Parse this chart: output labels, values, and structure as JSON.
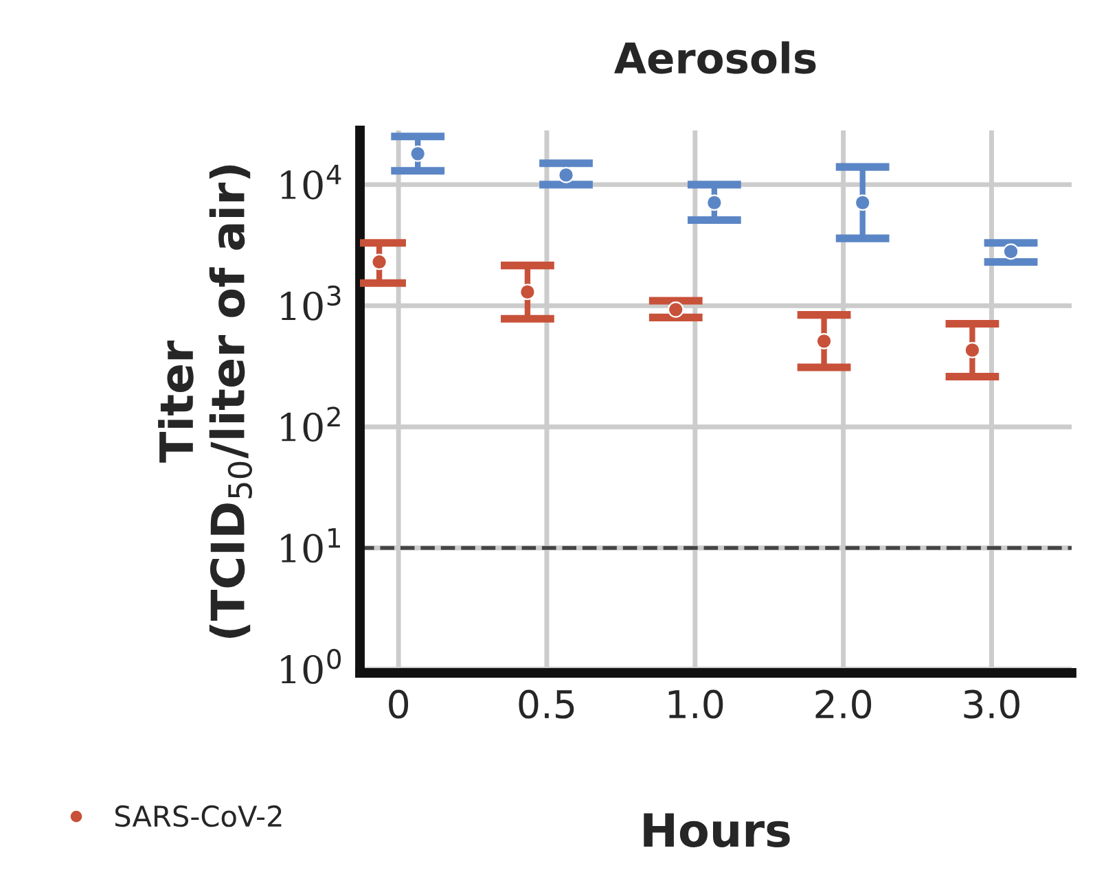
{
  "chart_data": {
    "type": "scatter",
    "title": "Aerosols",
    "xlabel": "Hours",
    "ylabel": "Titer\n(TCID$_{50}$/liter of air)",
    "categories": [
      "0",
      "0.5",
      "1.0",
      "2.0",
      "3.0"
    ],
    "series": [
      {
        "name": "SARS-CoV-2",
        "color": "#c8513a",
        "values": [
          2300,
          1300,
          930,
          510,
          430
        ],
        "errors": [
          [
            1540,
            3300
          ],
          [
            780,
            2150
          ],
          [
            800,
            1100
          ],
          [
            310,
            840
          ],
          [
            260,
            710
          ]
        ]
      },
      {
        "color": "#5b86c6",
        "values": [
          18000,
          12000,
          7100,
          7100,
          2800
        ],
        "errors": [
          [
            13000,
            25000
          ],
          [
            10000,
            15000
          ],
          [
            5100,
            10000
          ],
          [
            3600,
            14000
          ],
          [
            2300,
            3300
          ]
        ]
      }
    ],
    "log": "y",
    "ylim": [
      0.93,
      28000
    ],
    "yticks": [
      {
        "value": 1,
        "label": "10$^{0}$"
      },
      {
        "value": 10,
        "label": "10$^{1}$"
      },
      {
        "value": 100,
        "label": "10$^{2}$"
      },
      {
        "value": 1000,
        "label": "10$^{3}$"
      },
      {
        "value": 10000,
        "label": "10$^{4}$"
      }
    ],
    "ref_lines": [
      {
        "axis": "y",
        "value": 10,
        "color": "#444444",
        "line_style": "dashed"
      }
    ],
    "grid": true,
    "legend": "bottom left",
    "marker": "circle"
  }
}
